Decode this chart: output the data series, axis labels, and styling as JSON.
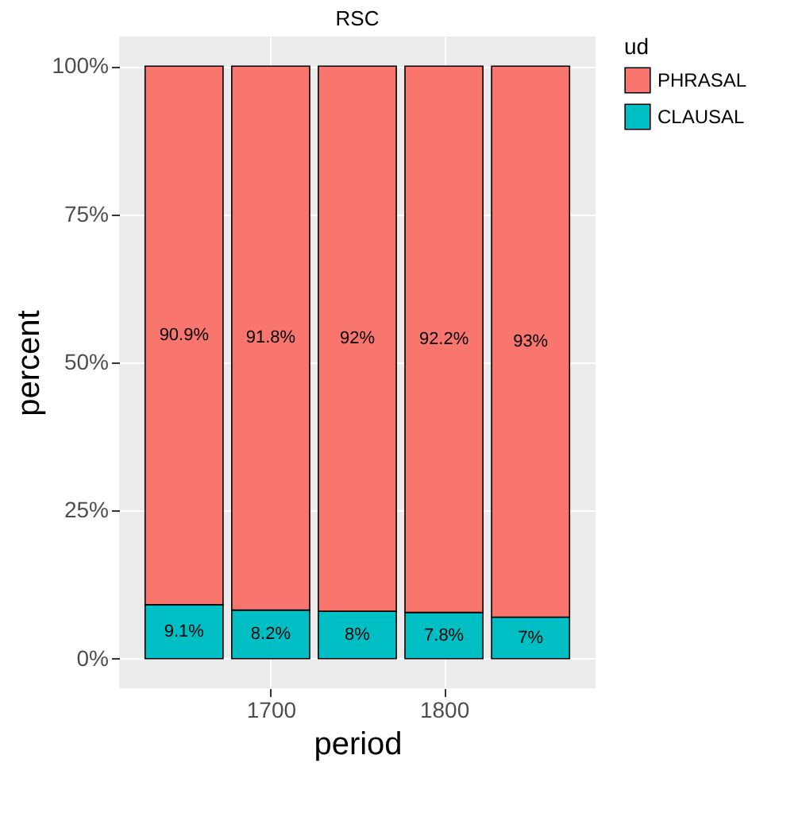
{
  "chart_data": {
    "type": "bar",
    "title": "RSC",
    "xlabel": "period",
    "ylabel": "percent",
    "legend_title": "ud",
    "stacked": true,
    "grid": true,
    "legend": "right",
    "x": [
      1650,
      1700,
      1750,
      1800,
      1850
    ],
    "xlim": [
      1612.5,
      1887.5
    ],
    "xticks": [
      1700,
      1800
    ],
    "ylim": [
      -5,
      105
    ],
    "yticks": [
      {
        "value": 0,
        "label": "0%"
      },
      {
        "value": 25,
        "label": "25%"
      },
      {
        "value": 50,
        "label": "50%"
      },
      {
        "value": 75,
        "label": "75%"
      },
      {
        "value": 100,
        "label": "100%"
      }
    ],
    "series": [
      {
        "name": "CLAUSAL",
        "color": "#00bfc4",
        "values": [
          9.1,
          8.2,
          8,
          7.8,
          7
        ],
        "value_labels": [
          "9.1%",
          "8.2%",
          "8%",
          "7.8%",
          "7%"
        ]
      },
      {
        "name": "PHRASAL",
        "color": "#f8766d",
        "values": [
          90.9,
          91.8,
          92,
          92.2,
          93
        ],
        "value_labels": [
          "90.9%",
          "91.8%",
          "92%",
          "92.2%",
          "93%"
        ]
      }
    ]
  }
}
